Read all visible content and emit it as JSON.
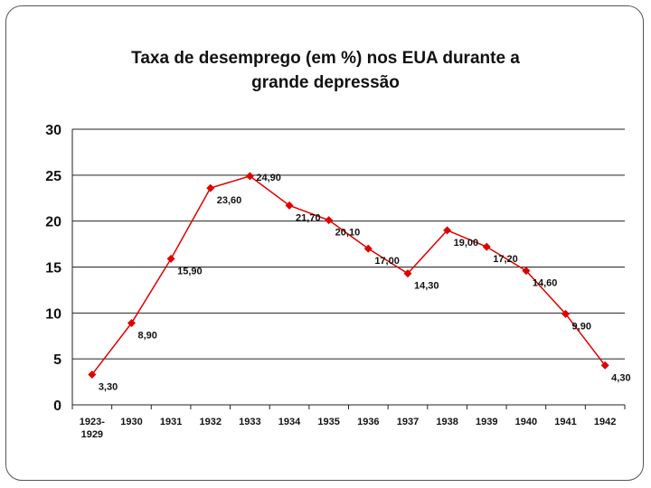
{
  "chart_data": {
    "type": "line",
    "title_line1": "Taxa de desemprego (em %)  nos EUA durante a",
    "title_line2": "grande depressão",
    "xlabel": "",
    "ylabel": "",
    "ylim": [
      0,
      30
    ],
    "yticks": [
      "0",
      "5",
      "10",
      "15",
      "20",
      "25",
      "30"
    ],
    "grid": true,
    "color": "#e00000",
    "categories": [
      [
        "1923-",
        "1929"
      ],
      [
        "1930"
      ],
      [
        "1931"
      ],
      [
        "1932"
      ],
      [
        "1933"
      ],
      [
        "1934"
      ],
      [
        "1935"
      ],
      [
        "1936"
      ],
      [
        "1937"
      ],
      [
        "1938"
      ],
      [
        "1939"
      ],
      [
        "1940"
      ],
      [
        "1941"
      ],
      [
        "1942"
      ]
    ],
    "values": [
      3.3,
      8.9,
      15.9,
      23.6,
      24.9,
      21.7,
      20.1,
      17.0,
      14.3,
      19.0,
      17.2,
      14.6,
      9.9,
      4.3
    ],
    "data_labels": [
      "3,30",
      "8,90",
      "15,90",
      "23,60",
      "24,90",
      "21,70",
      "20,10",
      "17,00",
      "14,30",
      "19,00",
      "17,20",
      "14,60",
      "9,90",
      "4,30"
    ]
  }
}
